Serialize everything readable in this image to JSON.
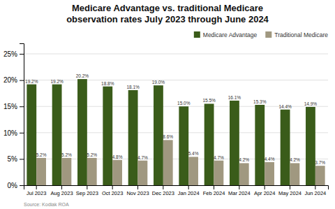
{
  "chart_data": {
    "type": "bar",
    "title": "Medicare Advantage vs. traditional Medicare\nobservation rates July 2023 through June 2024",
    "categories": [
      "Jul 2023",
      "Aug 2023",
      "Sep 2023",
      "Oct 2023",
      "Nov 2023",
      "Dec 2023",
      "Jan 2024",
      "Feb 2024",
      "Mar 2024",
      "Apr 2024",
      "May 2024",
      "Jun 2024"
    ],
    "series": [
      {
        "name": "Medicare Advantage",
        "color": "#3a5c1a",
        "values": [
          19.2,
          19.2,
          20.2,
          18.8,
          18.1,
          19.0,
          15.0,
          15.5,
          16.1,
          15.3,
          14.4,
          14.9
        ],
        "value_labels": [
          "19.2%",
          "19.2%",
          "20.2%",
          "18.8%",
          "18.1%",
          "19.0%",
          "15.0%",
          "15.5%",
          "16.1%",
          "15.3%",
          "14.4%",
          "14.9%"
        ]
      },
      {
        "name": "Traditional Medicare",
        "color": "#a09880",
        "values": [
          5.2,
          5.2,
          5.2,
          4.8,
          4.7,
          8.6,
          5.4,
          4.7,
          4.2,
          4.4,
          4.2,
          3.7
        ],
        "value_labels": [
          "5.2%",
          "5.2%",
          "5.2%",
          "4.8%",
          "4.7%",
          "8.6%",
          "5.4%",
          "4.7%",
          "4.2%",
          "4.4%",
          "4.2%",
          "3.7%"
        ]
      }
    ],
    "ylim": [
      0,
      27
    ],
    "yticks": [
      {
        "value": 0,
        "label": "0%"
      },
      {
        "value": 5,
        "label": "5%"
      },
      {
        "value": 10,
        "label": "10%"
      },
      {
        "value": 15,
        "label": "15%"
      },
      {
        "value": 20,
        "label": "20%"
      },
      {
        "value": 25,
        "label": "25%"
      }
    ],
    "grid": true,
    "legend": "top-right",
    "data_labels": true,
    "annotations": [
      "Source: Kodiak ROA"
    ]
  }
}
